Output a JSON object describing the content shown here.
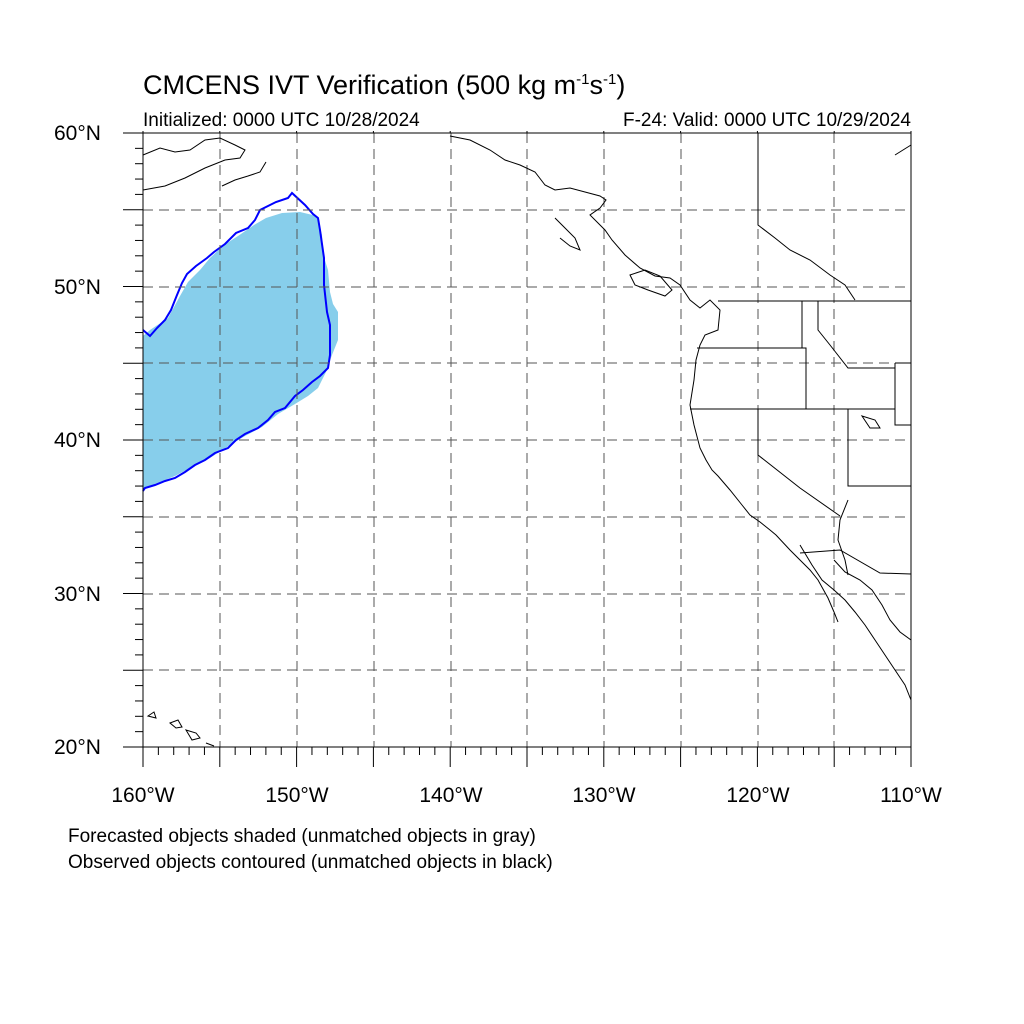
{
  "title_main": "CMCENS IVT Verification (500 kg m",
  "title_sup1": "-1",
  "title_s": "s",
  "title_sup2": "-1",
  "title_close": ")",
  "initialized": "Initialized: 0000 UTC 10/28/2024",
  "valid": "F-24: Valid: 0000 UTC 10/29/2024",
  "lat_labels": [
    "60°N",
    "50°N",
    "40°N",
    "30°N",
    "20°N"
  ],
  "lon_labels": [
    "160°W",
    "150°W",
    "140°W",
    "130°W",
    "120°W",
    "110°W"
  ],
  "caption_1": "Forecasted objects shaded (unmatched objects in gray)",
  "caption_2": "Observed objects contoured (unmatched objects in black)",
  "colors": {
    "forecast_fill": "#87ceeb",
    "observed_contour": "#0000ff",
    "grid": "#555555",
    "coastline": "#000000"
  },
  "map_extent": {
    "lon_min": -160,
    "lon_max": -110,
    "lat_min": 20,
    "lat_max": 60
  }
}
